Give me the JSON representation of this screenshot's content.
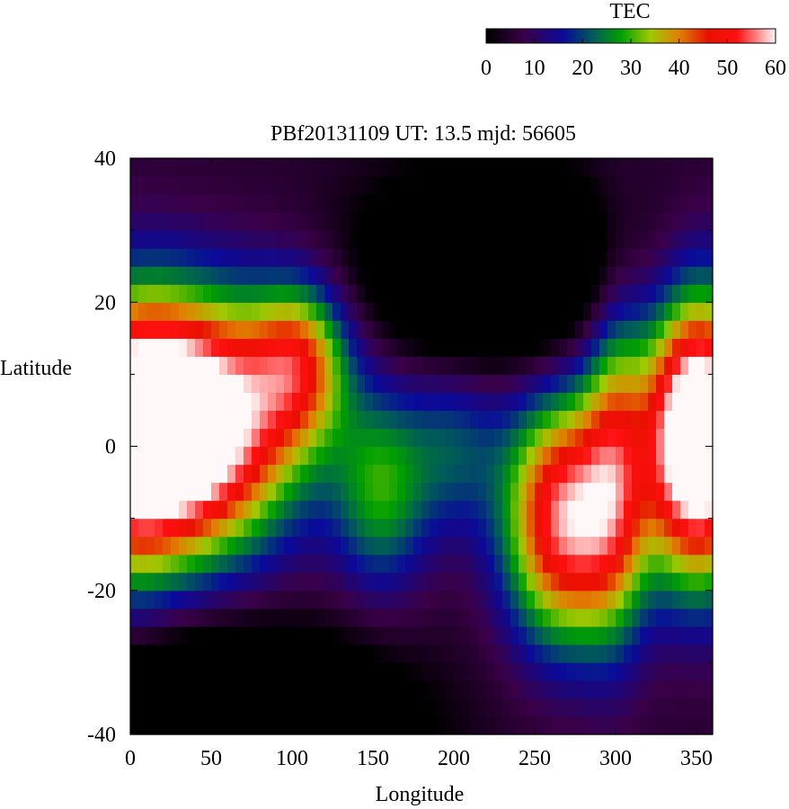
{
  "chart_data": {
    "type": "heatmap",
    "title": "PBf20131109  UT: 13.5  mjd: 56605",
    "xlabel": "Longitude",
    "ylabel": "Latitude",
    "xlim": [
      0,
      360
    ],
    "ylim": [
      -40,
      40
    ],
    "x_ticks": [
      "0",
      "50",
      "100",
      "150",
      "200",
      "250",
      "300",
      "350"
    ],
    "x_tick_values": [
      0,
      50,
      100,
      150,
      200,
      250,
      300,
      350
    ],
    "y_ticks": [
      "40",
      "20",
      "0",
      "-20",
      "-40"
    ],
    "y_tick_values": [
      40,
      20,
      0,
      -20,
      -40
    ],
    "colorbar": {
      "label": "TEC",
      "range": [
        0,
        60
      ],
      "ticks": [
        "0",
        "10",
        "20",
        "30",
        "40",
        "50",
        "60"
      ],
      "tick_values": [
        0,
        10,
        20,
        30,
        40,
        50,
        60
      ],
      "colormap": [
        {
          "value": 0,
          "color": "#000000"
        },
        {
          "value": 8,
          "color": "#3a0048"
        },
        {
          "value": 16,
          "color": "#0a0a9a"
        },
        {
          "value": 22,
          "color": "#005a5a"
        },
        {
          "value": 28,
          "color": "#00a000"
        },
        {
          "value": 34,
          "color": "#a0c800"
        },
        {
          "value": 40,
          "color": "#e08000"
        },
        {
          "value": 46,
          "color": "#e81000"
        },
        {
          "value": 52,
          "color": "#ff1010"
        },
        {
          "value": 56,
          "color": "#ff8080"
        },
        {
          "value": 60,
          "color": "#fff8f8"
        }
      ]
    },
    "grid": {
      "lon_step": 5,
      "lat_step": 2.5,
      "lon_start": 0,
      "lat_start": -40,
      "cols": 72,
      "rows": 32
    },
    "tec_model": {
      "description": "sum of gaussian blobs approximating the displayed TEC field",
      "base": 5,
      "blobs": [
        {
          "lon": 35,
          "lat": 3,
          "slon": 65,
          "slat": 17,
          "amp": 70
        },
        {
          "lon": -5,
          "lat": 0,
          "slon": 40,
          "slat": 20,
          "amp": 30
        },
        {
          "lon": 355,
          "lat": 0,
          "slon": 40,
          "slat": 20,
          "amp": 30
        },
        {
          "lon": 350,
          "lat": 2,
          "slon": 30,
          "slat": 18,
          "amp": 45
        },
        {
          "lon": 105,
          "lat": 12,
          "slon": 30,
          "slat": 11,
          "amp": 30
        },
        {
          "lon": 155,
          "lat": -6,
          "slon": 30,
          "slat": 14,
          "amp": 22
        },
        {
          "lon": 270,
          "lat": -10,
          "slon": 38,
          "slat": 17,
          "amp": 52
        },
        {
          "lon": 300,
          "lat": 0,
          "slon": 20,
          "slat": 25,
          "amp": 22
        },
        {
          "lon": 200,
          "lat": 0,
          "slon": 30,
          "slat": 12,
          "amp": 14
        },
        {
          "lon": 225,
          "lat": 25,
          "slon": 70,
          "slat": 12,
          "amp": -30
        },
        {
          "lon": 60,
          "lat": -40,
          "slon": 90,
          "slat": 12,
          "amp": -40
        }
      ]
    }
  }
}
